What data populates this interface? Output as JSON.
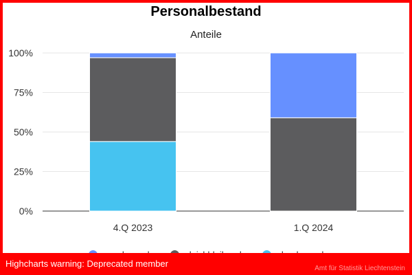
{
  "chart_data": {
    "type": "bar",
    "stacked": true,
    "title": "Personalbestand",
    "subtitle": "Anteile",
    "categories": [
      "4.Q 2023",
      "1.Q 2024"
    ],
    "series": [
      {
        "name": "zunehmend",
        "color": "#6690ff",
        "values": [
          3,
          41
        ]
      },
      {
        "name": "gleichbleibend",
        "color": "#5c5c5e",
        "values": [
          53,
          59
        ]
      },
      {
        "name": "abnehmend",
        "color": "#46c3f0",
        "values": [
          44,
          0
        ]
      }
    ],
    "y_ticks": [
      "0%",
      "25%",
      "50%",
      "75%",
      "100%"
    ],
    "ylim": [
      0,
      100
    ],
    "grid": true,
    "legend_position": "bottom"
  },
  "warning_text": "Highcharts warning: Deprecated member",
  "credit_text": "Amt für Statistik Liechtenstein"
}
